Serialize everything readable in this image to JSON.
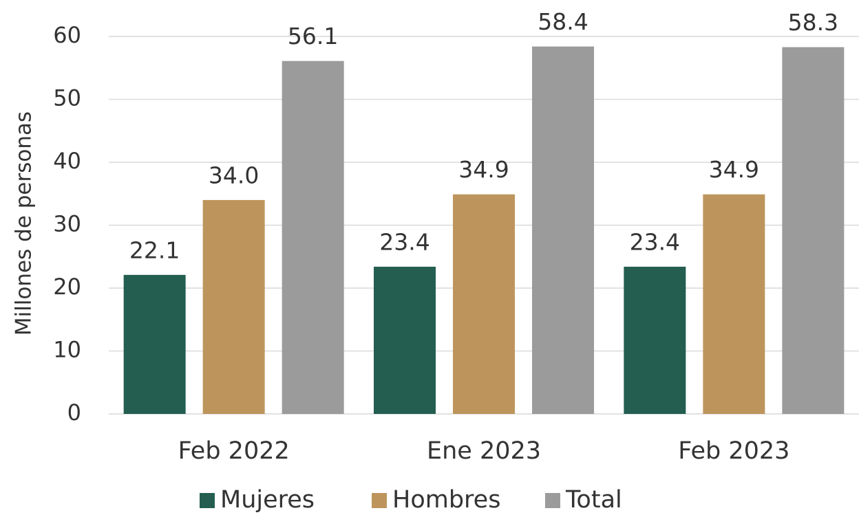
{
  "chart_data": {
    "type": "bar",
    "y_label": "Millones de personas",
    "categories": [
      "Feb 2022",
      "Ene 2023",
      "Feb 2023"
    ],
    "series": [
      {
        "name": "Mujeres",
        "color": "#235e50",
        "values": [
          22.1,
          23.4,
          23.4
        ],
        "value_labels": [
          "22.1",
          "23.4",
          "23.4"
        ]
      },
      {
        "name": "Hombres",
        "color": "#bd955c",
        "values": [
          34.0,
          34.9,
          34.9
        ],
        "value_labels": [
          "34.0",
          "34.9",
          "34.9"
        ]
      },
      {
        "name": "Total",
        "color": "#9b9b9c",
        "values": [
          56.1,
          58.4,
          58.3
        ],
        "value_labels": [
          "56.1",
          "58.4",
          "58.3"
        ]
      }
    ],
    "ylim": [
      0,
      60
    ],
    "yticks": [
      0,
      10,
      20,
      30,
      40,
      50,
      60
    ],
    "grid": true,
    "legend": "bottom"
  }
}
